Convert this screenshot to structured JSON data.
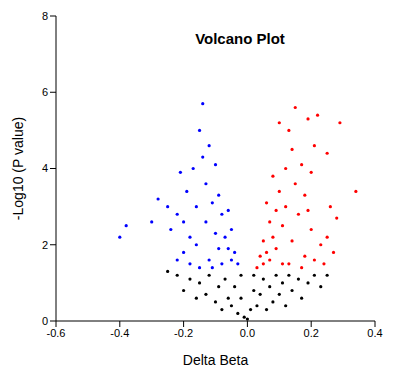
{
  "chart_data": {
    "type": "scatter",
    "title": "Volcano Plot",
    "x_label": "Delta Beta",
    "y_label": "-Log10 (P value)",
    "xlim": [
      -0.6,
      0.4
    ],
    "xticks": [
      -0.6,
      -0.4,
      -0.2,
      {
        "value": 0,
        "label": "0.0"
      },
      0.2,
      0.4
    ],
    "ylim": [
      0,
      8
    ],
    "yticks": [
      0,
      2,
      4,
      6,
      8
    ],
    "grid": false,
    "series": [
      {
        "color": "#0000ff",
        "marker": "circle",
        "x": [
          -0.4,
          -0.38,
          -0.3,
          -0.28,
          -0.25,
          -0.24,
          -0.22,
          -0.21,
          -0.2,
          -0.19,
          -0.18,
          -0.17,
          -0.16,
          -0.15,
          -0.14,
          -0.14,
          -0.13,
          -0.13,
          -0.12,
          -0.12,
          -0.11,
          -0.1,
          -0.1,
          -0.09,
          -0.09,
          -0.08,
          -0.08,
          -0.07,
          -0.06,
          -0.06,
          -0.05,
          -0.05,
          -0.04,
          -0.03,
          -0.15,
          -0.18,
          -0.22,
          -0.11,
          -0.16,
          -0.2
        ],
        "y": [
          2.2,
          2.5,
          2.6,
          3.2,
          3.0,
          2.4,
          2.8,
          3.9,
          1.8,
          3.4,
          2.2,
          4.0,
          3.0,
          5.0,
          5.7,
          4.3,
          3.6,
          2.6,
          4.6,
          1.6,
          3.1,
          4.1,
          2.3,
          3.3,
          1.9,
          2.8,
          1.5,
          2.2,
          1.9,
          2.9,
          1.6,
          2.4,
          1.8,
          1.5,
          1.4,
          1.5,
          1.6,
          1.4,
          2.0,
          2.6
        ]
      },
      {
        "color": "#ff0000",
        "marker": "circle",
        "x": [
          0.34,
          0.29,
          0.28,
          0.27,
          0.26,
          0.25,
          0.24,
          0.22,
          0.21,
          0.2,
          0.2,
          0.19,
          0.18,
          0.18,
          0.17,
          0.16,
          0.15,
          0.15,
          0.14,
          0.14,
          0.13,
          0.13,
          0.12,
          0.12,
          0.11,
          0.1,
          0.1,
          0.09,
          0.09,
          0.08,
          0.08,
          0.07,
          0.07,
          0.06,
          0.06,
          0.05,
          0.05,
          0.04,
          0.03,
          0.23,
          0.17,
          0.11,
          0.21,
          0.19,
          0.25
        ],
        "y": [
          3.4,
          5.2,
          2.7,
          1.8,
          3.0,
          2.2,
          1.5,
          5.4,
          4.6,
          3.9,
          2.4,
          5.3,
          3.3,
          1.7,
          4.1,
          2.8,
          5.6,
          3.6,
          2.1,
          4.5,
          5.0,
          1.5,
          3.0,
          4.0,
          2.5,
          5.2,
          3.4,
          1.9,
          2.9,
          3.8,
          2.2,
          1.6,
          2.6,
          3.1,
          1.8,
          2.1,
          1.5,
          1.7,
          1.4,
          2.0,
          1.4,
          1.5,
          1.6,
          2.9,
          4.4
        ]
      },
      {
        "color": "#000000",
        "marker": "circle",
        "x": [
          -0.22,
          -0.2,
          -0.18,
          -0.16,
          -0.15,
          -0.13,
          -0.12,
          -0.1,
          -0.09,
          -0.08,
          -0.07,
          -0.06,
          -0.05,
          -0.04,
          -0.03,
          -0.02,
          -0.02,
          -0.01,
          0.0,
          0.01,
          0.02,
          0.02,
          0.03,
          0.04,
          0.05,
          0.06,
          0.07,
          0.08,
          0.09,
          0.1,
          0.11,
          0.12,
          0.13,
          0.14,
          0.16,
          0.17,
          0.19,
          0.21,
          0.23,
          -0.25,
          0.25
        ],
        "y": [
          1.2,
          0.8,
          1.1,
          0.6,
          1.0,
          0.7,
          1.2,
          0.5,
          0.9,
          0.3,
          1.1,
          0.6,
          0.4,
          0.9,
          0.2,
          0.6,
          1.2,
          0.1,
          0.05,
          0.3,
          0.8,
          1.2,
          0.4,
          0.7,
          1.1,
          0.3,
          0.9,
          0.5,
          1.2,
          0.7,
          1.0,
          0.4,
          1.2,
          0.8,
          1.1,
          0.6,
          1.0,
          1.2,
          0.9,
          1.3,
          1.2
        ]
      }
    ]
  }
}
